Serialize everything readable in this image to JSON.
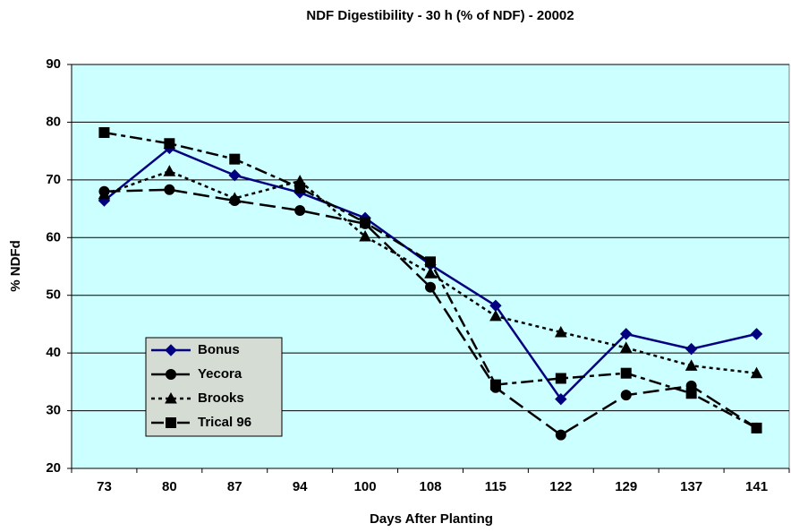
{
  "chart_data": {
    "type": "line",
    "title": "NDF Digestibility - 30 h (% of NDF) - 20002",
    "x_label": "Days After Planting",
    "y_label": "% NDFd",
    "categories": [
      "73",
      "80",
      "87",
      "94",
      "100",
      "108",
      "115",
      "122",
      "129",
      "137",
      "141"
    ],
    "series": [
      {
        "name": "Bonus",
        "color": "#000080",
        "marker": "diamond",
        "dash": "solid",
        "values": [
          66.4,
          75.5,
          70.8,
          67.8,
          63.4,
          55.3,
          48.2,
          32.0,
          43.3,
          40.7,
          43.3
        ]
      },
      {
        "name": "Yecora",
        "color": "#000000",
        "marker": "circle",
        "dash": "long-dash",
        "values": [
          68.0,
          68.3,
          66.4,
          64.7,
          62.4,
          51.4,
          34.0,
          25.8,
          32.7,
          34.3,
          27.0
        ]
      },
      {
        "name": "Brooks",
        "color": "#000000",
        "marker": "triangle",
        "dash": "dot",
        "values": [
          67.5,
          71.5,
          66.8,
          69.8,
          60.2,
          53.8,
          46.4,
          43.6,
          40.9,
          37.8,
          36.5
        ]
      },
      {
        "name": "Trical 96",
        "color": "#000000",
        "marker": "square",
        "dash": "dash-dot",
        "values": [
          78.2,
          76.3,
          73.6,
          68.6,
          62.6,
          55.8,
          34.5,
          35.6,
          36.5,
          33.0,
          27.0
        ]
      }
    ],
    "ylim": [
      20,
      90
    ],
    "yticks": [
      20,
      30,
      40,
      50,
      60,
      70,
      80,
      90
    ],
    "grid": true,
    "plot_background": "#ccffff",
    "legend": "lower-left"
  }
}
